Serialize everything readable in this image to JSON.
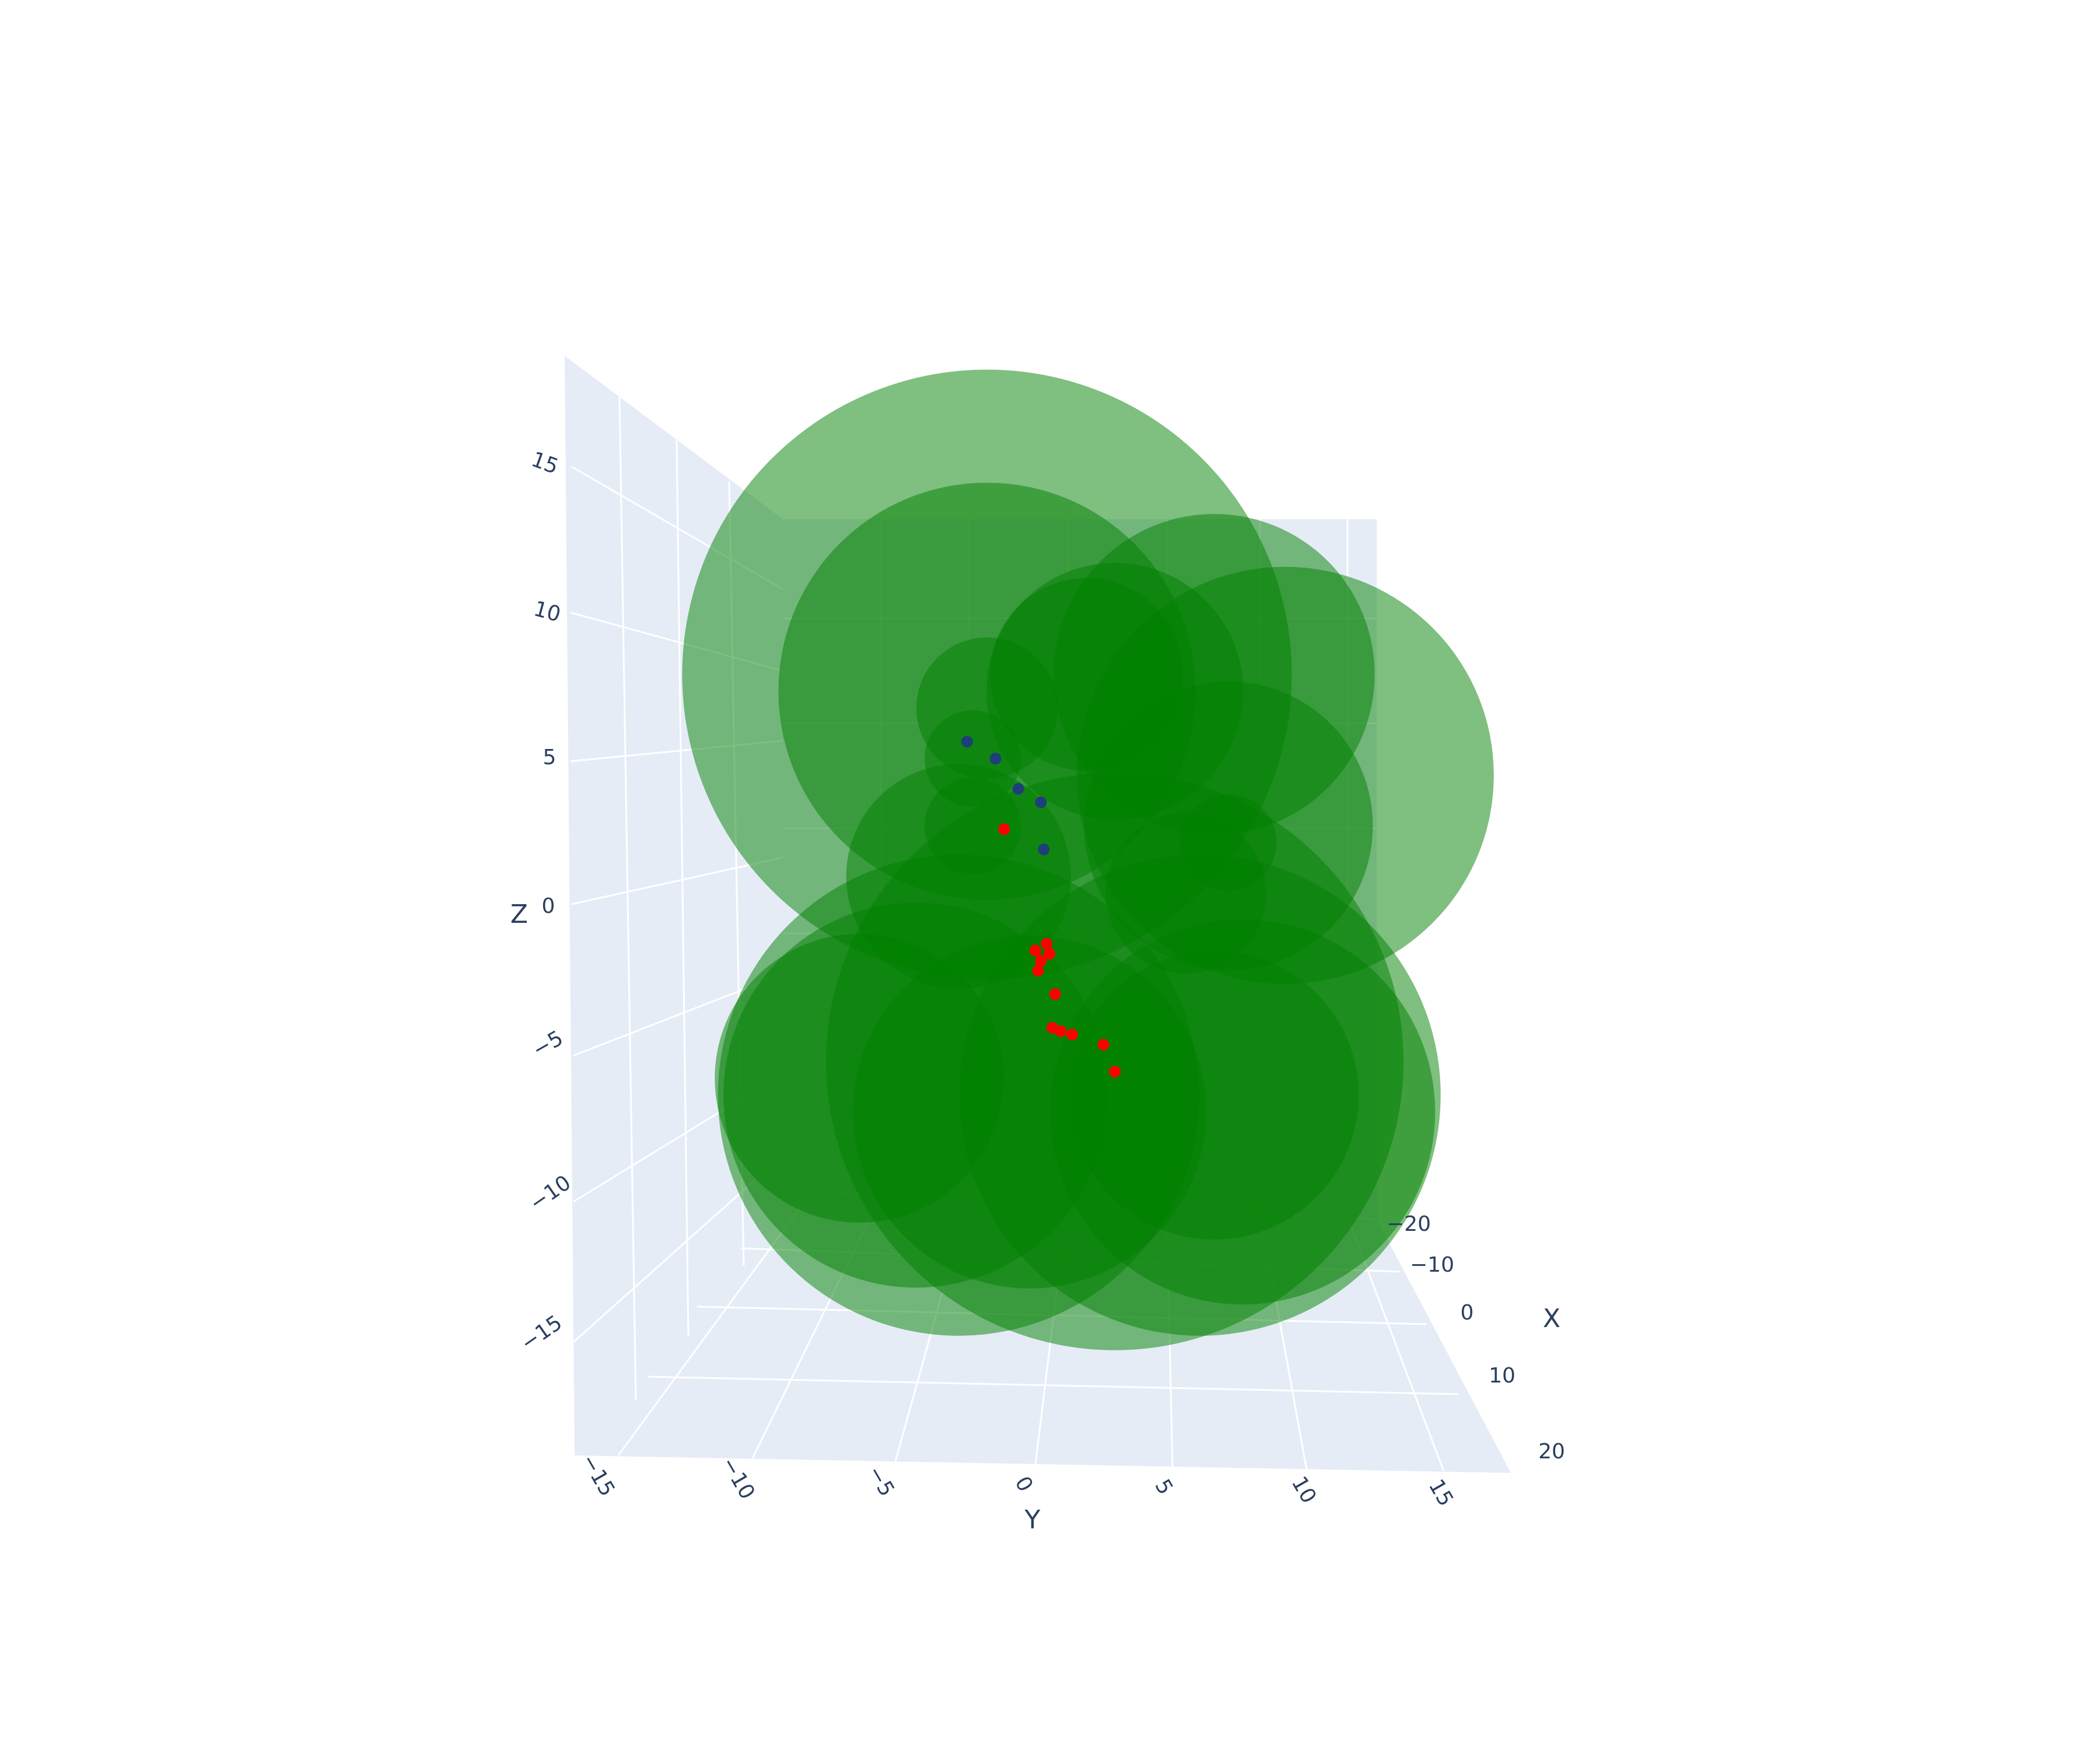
{
  "chart_data": {
    "type": "scatter",
    "subtype": "3d-scatter",
    "title": "",
    "axes": {
      "x": {
        "label": "X",
        "ticks": [
          "−20",
          "−10",
          "0",
          "10",
          "20"
        ],
        "range": [
          -22,
          22
        ]
      },
      "y": {
        "label": "Y",
        "ticks": [
          "−15",
          "−10",
          "−5",
          "0",
          "5",
          "10",
          "15"
        ],
        "range": [
          -17,
          17
        ]
      },
      "z": {
        "label": "Z",
        "ticks": [
          "−15",
          "−10",
          "−5",
          "0",
          "5",
          "10",
          "15"
        ],
        "range": [
          -19,
          19
        ]
      }
    },
    "background_color": "#e5ecf6",
    "grid": true,
    "legend": "none",
    "series": [
      {
        "marker": "sphere",
        "color": "#008000",
        "opacity": 0.5,
        "points": [
          {
            "y": -1.5,
            "z": 7,
            "r": 9.5
          },
          {
            "y": -1.5,
            "z": 6.5,
            "r": 6.5
          },
          {
            "y": 6.5,
            "z": 7,
            "r": 5
          },
          {
            "y": 9,
            "z": 4,
            "r": 6.5
          },
          {
            "y": 7,
            "z": 2.5,
            "r": 4.5
          },
          {
            "y": 3,
            "z": 6.5,
            "r": 4
          },
          {
            "y": 2,
            "z": 7,
            "r": 3
          },
          {
            "y": -1.5,
            "z": 6,
            "r": 2.2
          },
          {
            "y": -2,
            "z": 4.5,
            "r": 1.5
          },
          {
            "y": -2,
            "z": 2.5,
            "r": 1.5
          },
          {
            "y": -2.5,
            "z": 1,
            "r": 3.5
          },
          {
            "y": 5.5,
            "z": 0.5,
            "r": 2.5
          },
          {
            "y": 7,
            "z": 2,
            "r": 1.5
          },
          {
            "y": 3,
            "z": -4.5,
            "r": 9
          },
          {
            "y": -2.5,
            "z": -5.5,
            "r": 7.5
          },
          {
            "y": 6,
            "z": -5.5,
            "r": 7.5
          },
          {
            "y": 7.5,
            "z": -6,
            "r": 6
          },
          {
            "y": -4,
            "z": -5.5,
            "r": 6
          },
          {
            "y": 0,
            "z": -6,
            "r": 5.5
          },
          {
            "y": -6,
            "z": -5,
            "r": 4.5
          },
          {
            "y": 6.5,
            "z": -5.5,
            "r": 4.5
          }
        ]
      },
      {
        "marker": "point",
        "color": "#ff0000",
        "points": [
          {
            "y": 0.2,
            "z": -1.2
          },
          {
            "y": 0.4,
            "z": -1.5
          },
          {
            "y": 0.7,
            "z": -1.3
          },
          {
            "y": 0.8,
            "z": -3.5
          },
          {
            "y": 1.1,
            "z": -3.6
          },
          {
            "y": 1.5,
            "z": -3.7
          },
          {
            "y": 2.6,
            "z": -4.0
          },
          {
            "y": 3.0,
            "z": -4.8
          },
          {
            "y": -0.9,
            "z": 2.4
          },
          {
            "y": 0.3,
            "z": -1.8
          },
          {
            "y": 0.6,
            "z": -1.0
          },
          {
            "y": 0.9,
            "z": -2.5
          }
        ]
      },
      {
        "marker": "point",
        "color": "#1f3f7a",
        "points": [
          {
            "y": -2.2,
            "z": 5.0
          },
          {
            "y": -1.2,
            "z": 4.5
          },
          {
            "y": 0.4,
            "z": 3.2
          },
          {
            "y": 0.5,
            "z": 1.8
          },
          {
            "y": -0.4,
            "z": 3.6
          }
        ]
      }
    ]
  }
}
